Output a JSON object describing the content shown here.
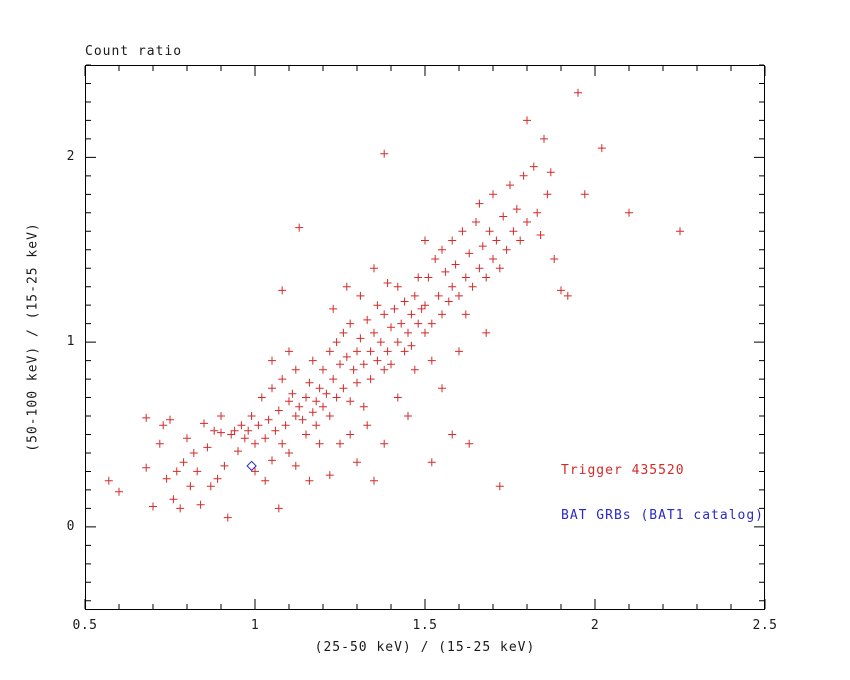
{
  "chart_data": {
    "type": "scatter",
    "title": "Count ratio",
    "xlabel": "(25-50 keV) / (15-25 keV)",
    "ylabel": "(50-100 keV) / (15-25 keV)",
    "xlim": [
      0.5,
      2.5
    ],
    "ylim": [
      -0.45,
      2.5
    ],
    "grid": false,
    "axis_color": "#000000",
    "x_ticks": {
      "major": [
        0.5,
        1,
        1.5,
        2,
        2.5
      ],
      "labels": [
        "0.5",
        "1",
        "1.5",
        "2",
        "2.5"
      ],
      "minor_step": 0.1
    },
    "y_ticks": {
      "major": [
        0,
        1,
        2
      ],
      "labels": [
        "0",
        "1",
        "2"
      ],
      "minor_step": 0.1
    },
    "series": [
      {
        "name": "red-plus-points",
        "marker": "plus",
        "color": "#d42a2a",
        "points": [
          [
            0.57,
            0.25
          ],
          [
            0.6,
            0.19
          ],
          [
            0.68,
            0.59
          ],
          [
            0.68,
            0.32
          ],
          [
            0.7,
            0.11
          ],
          [
            0.72,
            0.45
          ],
          [
            0.73,
            0.55
          ],
          [
            0.74,
            0.26
          ],
          [
            0.75,
            0.58
          ],
          [
            0.76,
            0.15
          ],
          [
            0.77,
            0.3
          ],
          [
            0.78,
            0.1
          ],
          [
            0.79,
            0.35
          ],
          [
            0.8,
            0.48
          ],
          [
            0.81,
            0.22
          ],
          [
            0.82,
            0.4
          ],
          [
            0.83,
            0.3
          ],
          [
            0.84,
            0.12
          ],
          [
            0.85,
            0.56
          ],
          [
            0.86,
            0.43
          ],
          [
            0.87,
            0.22
          ],
          [
            0.88,
            0.52
          ],
          [
            0.89,
            0.26
          ],
          [
            0.9,
            0.51
          ],
          [
            0.9,
            0.6
          ],
          [
            0.91,
            0.33
          ],
          [
            0.92,
            0.05
          ],
          [
            0.93,
            0.5
          ],
          [
            0.94,
            0.52
          ],
          [
            0.95,
            0.41
          ],
          [
            0.96,
            0.55
          ],
          [
            0.97,
            0.48
          ],
          [
            0.98,
            0.52
          ],
          [
            0.99,
            0.6
          ],
          [
            1.0,
            0.45
          ],
          [
            1.0,
            0.3
          ],
          [
            1.01,
            0.55
          ],
          [
            1.02,
            0.7
          ],
          [
            1.03,
            0.48
          ],
          [
            1.03,
            0.25
          ],
          [
            1.04,
            0.58
          ],
          [
            1.05,
            0.36
          ],
          [
            1.05,
            0.75
          ],
          [
            1.05,
            0.9
          ],
          [
            1.06,
            0.52
          ],
          [
            1.07,
            0.63
          ],
          [
            1.07,
            0.1
          ],
          [
            1.08,
            0.45
          ],
          [
            1.08,
            0.8
          ],
          [
            1.08,
            1.28
          ],
          [
            1.09,
            0.55
          ],
          [
            1.1,
            0.68
          ],
          [
            1.1,
            0.4
          ],
          [
            1.1,
            0.95
          ],
          [
            1.11,
            0.72
          ],
          [
            1.12,
            0.6
          ],
          [
            1.12,
            0.85
          ],
          [
            1.12,
            0.33
          ],
          [
            1.13,
            0.65
          ],
          [
            1.13,
            1.62
          ],
          [
            1.14,
            0.58
          ],
          [
            1.15,
            0.7
          ],
          [
            1.15,
            0.5
          ],
          [
            1.16,
            0.78
          ],
          [
            1.16,
            0.25
          ],
          [
            1.17,
            0.62
          ],
          [
            1.17,
            0.9
          ],
          [
            1.18,
            0.68
          ],
          [
            1.18,
            0.55
          ],
          [
            1.19,
            0.75
          ],
          [
            1.19,
            0.45
          ],
          [
            1.2,
            0.65
          ],
          [
            1.2,
            0.85
          ],
          [
            1.21,
            0.72
          ],
          [
            1.22,
            0.95
          ],
          [
            1.22,
            0.6
          ],
          [
            1.22,
            0.28
          ],
          [
            1.23,
            0.8
          ],
          [
            1.23,
            1.18
          ],
          [
            1.24,
            1.0
          ],
          [
            1.24,
            0.7
          ],
          [
            1.25,
            0.88
          ],
          [
            1.25,
            0.45
          ],
          [
            1.26,
            0.75
          ],
          [
            1.26,
            1.05
          ],
          [
            1.27,
            0.92
          ],
          [
            1.27,
            1.3
          ],
          [
            1.28,
            0.68
          ],
          [
            1.28,
            1.1
          ],
          [
            1.28,
            0.5
          ],
          [
            1.29,
            0.85
          ],
          [
            1.3,
            0.95
          ],
          [
            1.3,
            0.78
          ],
          [
            1.3,
            0.35
          ],
          [
            1.31,
            1.02
          ],
          [
            1.31,
            1.25
          ],
          [
            1.32,
            0.88
          ],
          [
            1.32,
            0.65
          ],
          [
            1.33,
            1.12
          ],
          [
            1.33,
            0.55
          ],
          [
            1.34,
            0.95
          ],
          [
            1.34,
            0.8
          ],
          [
            1.35,
            1.05
          ],
          [
            1.35,
            0.25
          ],
          [
            1.35,
            1.4
          ],
          [
            1.36,
            0.9
          ],
          [
            1.36,
            1.2
          ],
          [
            1.37,
            1.0
          ],
          [
            1.38,
            0.85
          ],
          [
            1.38,
            1.15
          ],
          [
            1.38,
            0.45
          ],
          [
            1.38,
            2.02
          ],
          [
            1.39,
            0.95
          ],
          [
            1.39,
            1.32
          ],
          [
            1.4,
            1.08
          ],
          [
            1.4,
            0.88
          ],
          [
            1.41,
            1.18
          ],
          [
            1.42,
            1.0
          ],
          [
            1.42,
            1.3
          ],
          [
            1.42,
            0.7
          ],
          [
            1.43,
            1.1
          ],
          [
            1.44,
            0.95
          ],
          [
            1.44,
            1.22
          ],
          [
            1.45,
            1.05
          ],
          [
            1.45,
            0.6
          ],
          [
            1.46,
            1.15
          ],
          [
            1.46,
            0.98
          ],
          [
            1.47,
            1.25
          ],
          [
            1.47,
            0.85
          ],
          [
            1.48,
            1.1
          ],
          [
            1.48,
            1.35
          ],
          [
            1.49,
            1.18
          ],
          [
            1.5,
            1.05
          ],
          [
            1.5,
            1.2
          ],
          [
            1.5,
            1.55
          ],
          [
            1.51,
            1.35
          ],
          [
            1.52,
            1.1
          ],
          [
            1.52,
            0.9
          ],
          [
            1.52,
            0.35
          ],
          [
            1.53,
            1.45
          ],
          [
            1.54,
            1.25
          ],
          [
            1.55,
            1.5
          ],
          [
            1.55,
            1.15
          ],
          [
            1.55,
            0.75
          ],
          [
            1.56,
            1.38
          ],
          [
            1.57,
            1.22
          ],
          [
            1.58,
            1.55
          ],
          [
            1.58,
            1.3
          ],
          [
            1.58,
            0.5
          ],
          [
            1.59,
            1.42
          ],
          [
            1.6,
            1.25
          ],
          [
            1.6,
            0.95
          ],
          [
            1.61,
            1.6
          ],
          [
            1.62,
            1.35
          ],
          [
            1.62,
            1.15
          ],
          [
            1.63,
            1.48
          ],
          [
            1.63,
            0.45
          ],
          [
            1.64,
            1.3
          ],
          [
            1.65,
            1.65
          ],
          [
            1.66,
            1.4
          ],
          [
            1.66,
            1.75
          ],
          [
            1.67,
            1.52
          ],
          [
            1.68,
            1.35
          ],
          [
            1.68,
            1.05
          ],
          [
            1.69,
            1.6
          ],
          [
            1.7,
            1.45
          ],
          [
            1.7,
            1.8
          ],
          [
            1.71,
            1.55
          ],
          [
            1.72,
            1.4
          ],
          [
            1.72,
            0.22
          ],
          [
            1.73,
            1.68
          ],
          [
            1.74,
            1.5
          ],
          [
            1.75,
            1.85
          ],
          [
            1.76,
            1.6
          ],
          [
            1.77,
            1.72
          ],
          [
            1.78,
            1.55
          ],
          [
            1.79,
            1.9
          ],
          [
            1.8,
            1.65
          ],
          [
            1.8,
            2.2
          ],
          [
            1.82,
            1.95
          ],
          [
            1.83,
            1.7
          ],
          [
            1.84,
            1.58
          ],
          [
            1.85,
            2.1
          ],
          [
            1.86,
            1.8
          ],
          [
            1.87,
            1.92
          ],
          [
            1.88,
            1.45
          ],
          [
            1.9,
            1.28
          ],
          [
            1.92,
            1.25
          ],
          [
            1.95,
            2.35
          ],
          [
            1.97,
            1.8
          ],
          [
            2.02,
            2.05
          ],
          [
            2.1,
            1.7
          ],
          [
            2.25,
            1.6
          ]
        ]
      },
      {
        "name": "blue-diamond-point",
        "marker": "diamond-open",
        "color": "#2a2ac8",
        "points": [
          [
            0.99,
            0.33
          ]
        ]
      }
    ],
    "annotations": [
      {
        "text": "Trigger 435520",
        "color": "#d42a2a",
        "x": 1.9,
        "y": 0.3
      },
      {
        "text": "BAT GRBs (BAT1 catalog)",
        "color": "#2a2ac8",
        "x": 1.9,
        "y": 0.06
      }
    ]
  }
}
